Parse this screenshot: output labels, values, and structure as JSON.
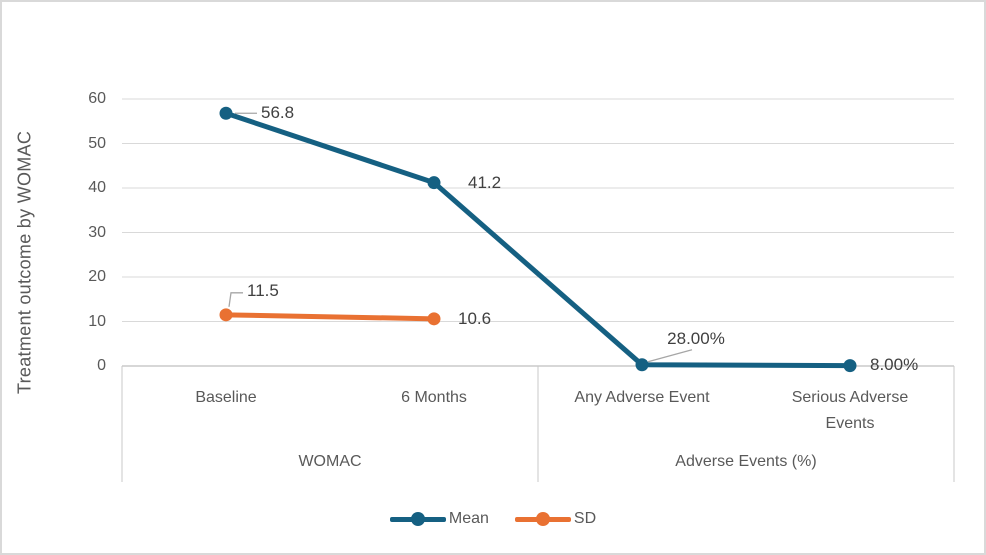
{
  "chart_data": {
    "type": "line",
    "title": "",
    "ylabel": "Treatment outcome by WOMAC",
    "xlabel": "",
    "ylim": [
      0,
      60
    ],
    "yticks": [
      0,
      10,
      20,
      30,
      40,
      50,
      60
    ],
    "grid": true,
    "legend_position": "bottom",
    "categories": [
      "Baseline",
      "6 Months",
      "Any Adverse Event",
      "Serious Adverse Events"
    ],
    "group_labels": [
      {
        "label": "WOMAC",
        "span": [
          0,
          1
        ]
      },
      {
        "label": "Adverse Events (%)",
        "span": [
          2,
          3
        ]
      }
    ],
    "series": [
      {
        "name": "Mean",
        "color": "#156082",
        "values": [
          56.8,
          41.2,
          0.28,
          0.08
        ],
        "labels": [
          "56.8",
          "41.2",
          "28.00%",
          "8.00%"
        ]
      },
      {
        "name": "SD",
        "color": "#E97132",
        "values": [
          11.5,
          10.6,
          null,
          null
        ],
        "labels": [
          "11.5",
          "10.6",
          null,
          null
        ]
      }
    ]
  },
  "colors": {
    "gridline": "#D9D9D9",
    "axis_line": "#BFBFBF",
    "bracket_line": "#C9C9C9",
    "leader_line": "#A6A6A6",
    "tick_text": "#595959",
    "data_label_text": "#404040",
    "frame_border": "#D9D9D9"
  }
}
